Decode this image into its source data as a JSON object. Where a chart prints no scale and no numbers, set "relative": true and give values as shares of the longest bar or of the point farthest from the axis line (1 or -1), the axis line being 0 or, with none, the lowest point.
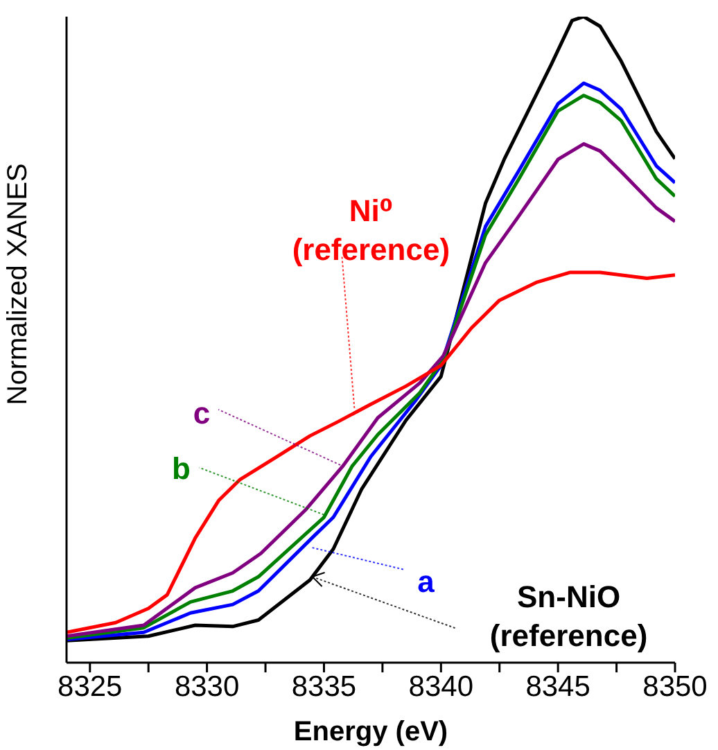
{
  "chart_data": {
    "type": "line",
    "xlabel": "Energy (eV)",
    "ylabel": "Normalized  XANES",
    "relative": true,
    "xlim": [
      8324,
      8350
    ],
    "xticks": [
      8325,
      {
        "value": 8327.5,
        "label": null
      },
      8330,
      {
        "value": 8332.5,
        "label": null
      },
      8335,
      {
        "value": 8337.5,
        "label": null
      },
      8340,
      {
        "value": 8342.5,
        "label": null
      },
      8345,
      {
        "value": 8347.5,
        "label": null
      },
      8350
    ],
    "marker": "none",
    "line_style": "solid",
    "series": [
      {
        "color": "#000000",
        "x": [
          8324.0,
          8327.5,
          8329.5,
          8331.1,
          8332.2,
          8334.4,
          8335.4,
          8336.6,
          8338.5,
          8340.0,
          8341.9,
          8342.7,
          8344.7,
          8345.6,
          8346.1,
          8346.8,
          8347.7,
          8349.2,
          8350
        ],
        "values": [
          0.034,
          0.041,
          0.058,
          0.056,
          0.066,
          0.128,
          0.176,
          0.268,
          0.375,
          0.443,
          0.711,
          0.779,
          0.925,
          0.994,
          1.0,
          0.985,
          0.931,
          0.822,
          0.78
        ]
      },
      {
        "color": "#0000ff",
        "x": [
          8324.0,
          8327.3,
          8329.3,
          8331.1,
          8332.2,
          8334.6,
          8335.4,
          8337.0,
          8338.9,
          8340.0,
          8341.9,
          8343.3,
          8345.0,
          8346.1,
          8346.8,
          8347.7,
          8349.2,
          8350
        ],
        "values": [
          0.036,
          0.047,
          0.077,
          0.09,
          0.111,
          0.197,
          0.225,
          0.319,
          0.405,
          0.46,
          0.675,
          0.76,
          0.865,
          0.897,
          0.886,
          0.857,
          0.769,
          0.743
        ]
      },
      {
        "color": "#008000",
        "x": [
          8324.0,
          8327.3,
          8329.3,
          8331.1,
          8332.2,
          8335.0,
          8336.2,
          8337.3,
          8339.1,
          8340.1,
          8341.9,
          8343.3,
          8345.0,
          8346.1,
          8346.8,
          8347.7,
          8349.2,
          8350
        ],
        "values": [
          0.038,
          0.054,
          0.094,
          0.111,
          0.133,
          0.225,
          0.304,
          0.353,
          0.418,
          0.469,
          0.662,
          0.747,
          0.854,
          0.878,
          0.867,
          0.839,
          0.749,
          0.722
        ]
      },
      {
        "color": "#800080",
        "x": [
          8324.0,
          8327.3,
          8329.5,
          8331.1,
          8332.3,
          8334.2,
          8335.8,
          8337.3,
          8339.1,
          8340.1,
          8341.9,
          8343.3,
          8345.0,
          8346.1,
          8346.8,
          8347.7,
          8349.2,
          8350
        ],
        "values": [
          0.041,
          0.058,
          0.116,
          0.139,
          0.169,
          0.236,
          0.304,
          0.379,
          0.433,
          0.475,
          0.619,
          0.69,
          0.779,
          0.803,
          0.792,
          0.76,
          0.704,
          0.683
        ]
      },
      {
        "color": "#ff0000",
        "x": [
          8324.0,
          8326.1,
          8327.5,
          8328.3,
          8329.5,
          8330.5,
          8331.4,
          8333.0,
          8334.4,
          8335.6,
          8337.0,
          8338.5,
          8340.0,
          8341.3,
          8342.5,
          8344.1,
          8345.5,
          8346.8,
          8348.8,
          8350
        ],
        "values": [
          0.047,
          0.062,
          0.084,
          0.105,
          0.193,
          0.251,
          0.283,
          0.319,
          0.351,
          0.373,
          0.4,
          0.428,
          0.46,
          0.518,
          0.561,
          0.589,
          0.604,
          0.604,
          0.595,
          0.6
        ]
      }
    ],
    "annotations": [
      {
        "text": "Ni⁰\n(reference)",
        "x": 8336.3,
        "y": 0.394
      },
      {
        "text": "c",
        "x": 8335.7,
        "y": 0.306
      },
      {
        "text": "b",
        "x": 8335.0,
        "y": 0.229
      },
      {
        "text": "a",
        "x": 8334.5,
        "y": 0.178
      },
      {
        "text": "Sn-NiO\n(reference)",
        "x": 8334.5,
        "y": 0.133
      }
    ]
  }
}
